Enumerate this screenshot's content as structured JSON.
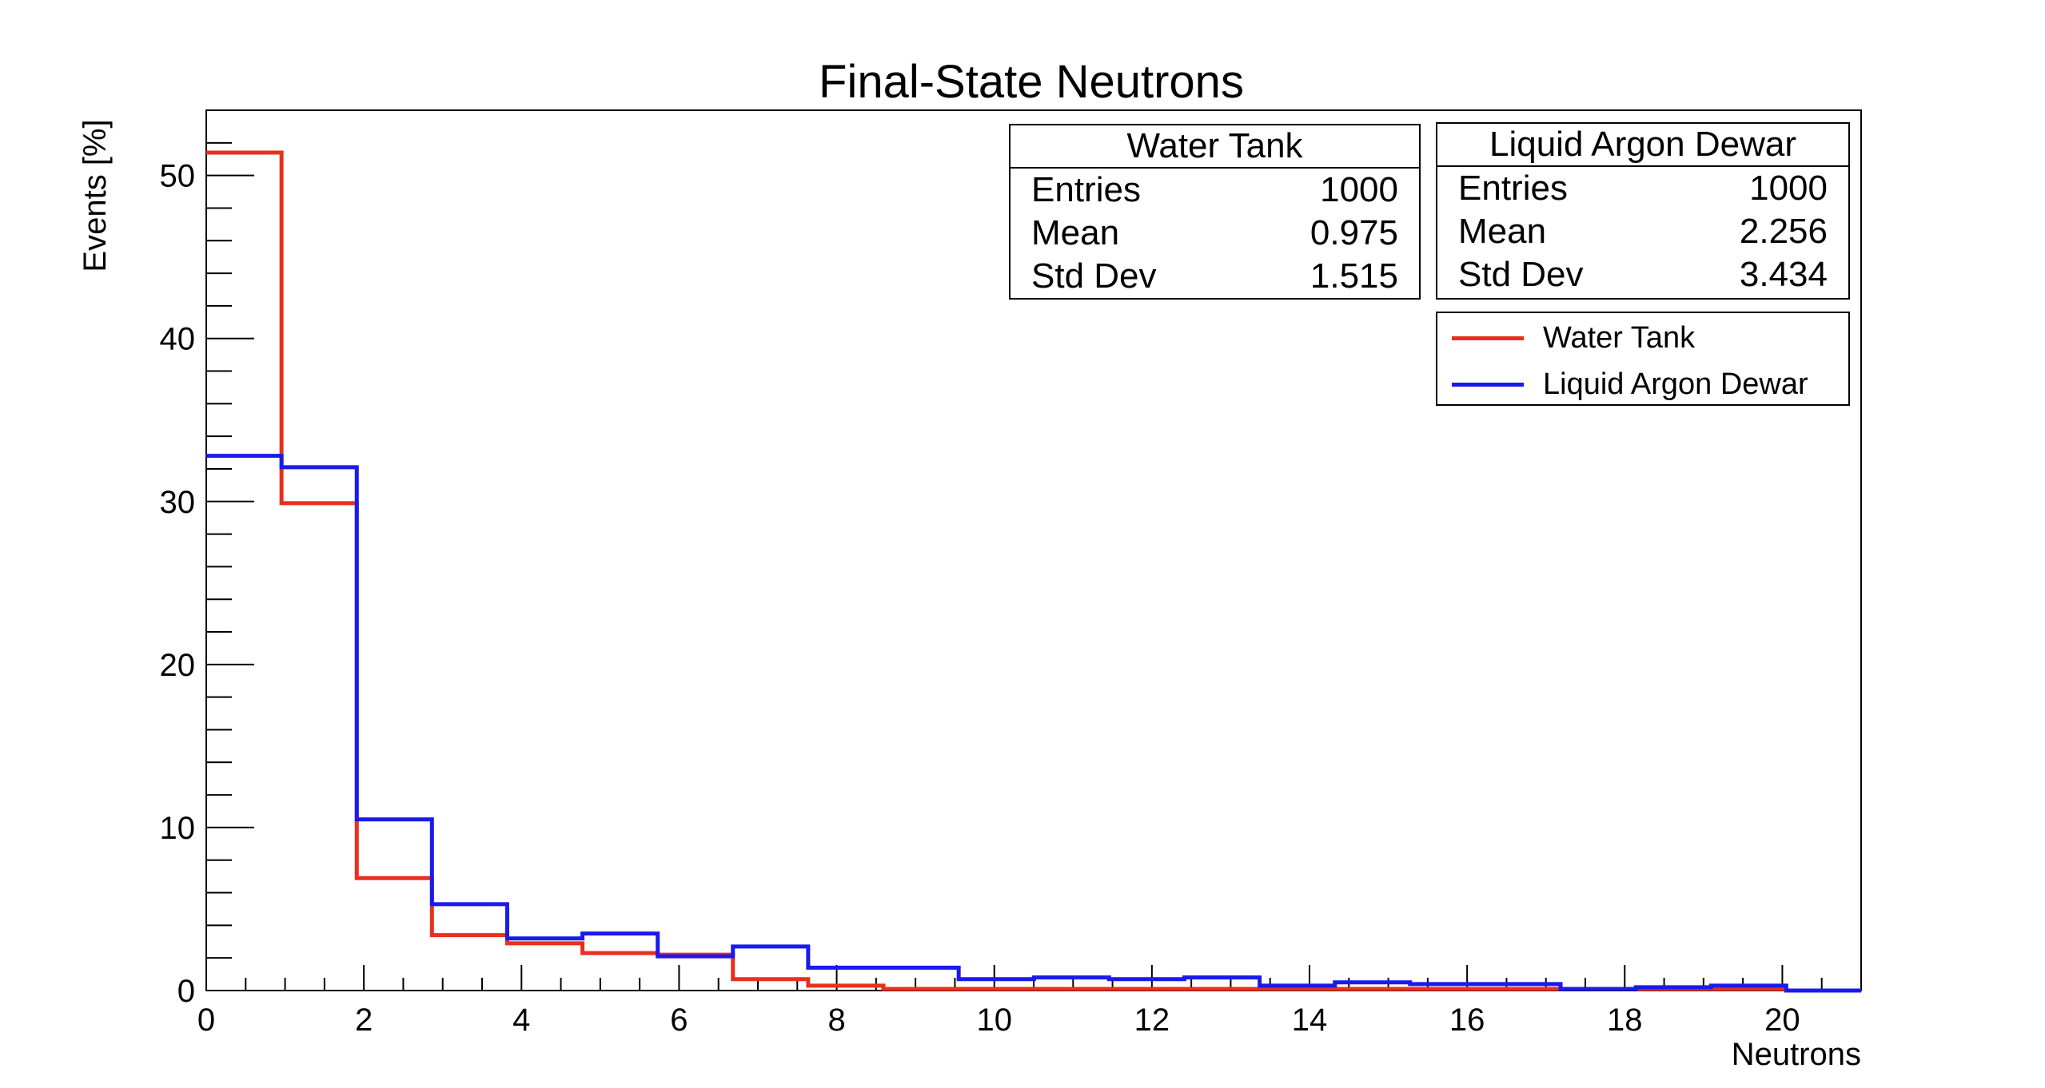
{
  "chart_data": {
    "type": "histogram",
    "title": "Final-State Neutrons",
    "xlabel": "Neutrons",
    "ylabel": "Events [%]",
    "xlim": [
      0,
      21
    ],
    "ylim": [
      0,
      54
    ],
    "x_ticks": [
      "0",
      "2",
      "4",
      "6",
      "8",
      "10",
      "12",
      "14",
      "16",
      "18",
      "20"
    ],
    "y_ticks": [
      "0",
      "10",
      "20",
      "30",
      "40",
      "50"
    ],
    "bin_edges": [
      0,
      0.955,
      1.91,
      2.864,
      3.819,
      4.774,
      5.729,
      6.683,
      7.638,
      8.593,
      9.548,
      10.503,
      11.457,
      12.412,
      13.367,
      14.322,
      15.276,
      16.231,
      17.186,
      18.141,
      19.096,
      20.05,
      21
    ],
    "series": [
      {
        "name": "Water Tank",
        "color": "#e8301c",
        "values": [
          51.4,
          29.9,
          6.9,
          3.4,
          2.9,
          2.3,
          2.2,
          0.7,
          0.3,
          0.1,
          0.1,
          0.1,
          0.1,
          0.1,
          0.1,
          0.1,
          0.1,
          0.1,
          0.1,
          0.1,
          0.1,
          0.0
        ]
      },
      {
        "name": "Liquid Argon Dewar",
        "color": "#1a1aec",
        "values": [
          32.8,
          32.1,
          10.5,
          5.3,
          3.2,
          3.5,
          2.1,
          2.7,
          1.4,
          1.4,
          0.7,
          0.8,
          0.7,
          0.8,
          0.3,
          0.5,
          0.4,
          0.4,
          0.1,
          0.2,
          0.3,
          0.0
        ]
      }
    ]
  },
  "stats": [
    {
      "title": "Water Tank",
      "rows": [
        {
          "label": "Entries",
          "value": "1000"
        },
        {
          "label": "Mean",
          "value": "0.975"
        },
        {
          "label": "Std Dev",
          "value": "1.515"
        }
      ]
    },
    {
      "title": "Liquid Argon Dewar",
      "rows": [
        {
          "label": "Entries",
          "value": "1000"
        },
        {
          "label": "Mean",
          "value": "2.256"
        },
        {
          "label": "Std Dev",
          "value": "3.434"
        }
      ]
    }
  ],
  "legend": [
    {
      "label": "Water Tank",
      "color": "#e8301c"
    },
    {
      "label": "Liquid Argon Dewar",
      "color": "#1a1aec"
    }
  ]
}
